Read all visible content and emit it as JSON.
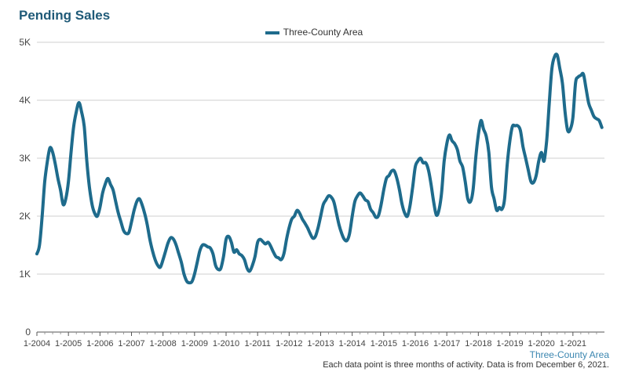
{
  "chart_data": {
    "type": "line",
    "title": "Pending Sales",
    "xlabel": "",
    "ylabel": "",
    "ylim": [
      0,
      5000
    ],
    "y_ticks": [
      "0",
      "1K",
      "2K",
      "3K",
      "4K",
      "5K"
    ],
    "x_ticks": [
      "1-2004",
      "1-2005",
      "1-2006",
      "1-2007",
      "1-2008",
      "1-2009",
      "1-2010",
      "1-2011",
      "1-2012",
      "1-2013",
      "1-2014",
      "1-2015",
      "1-2016",
      "1-2017",
      "1-2018",
      "1-2019",
      "1-2020",
      "1-2021"
    ],
    "grid": true,
    "legend_position": "top-center",
    "series": [
      {
        "name": "Three-County Area",
        "color": "#1e6b8c",
        "points": [
          [
            "2004-01",
            1350
          ],
          [
            "2004-02",
            1500
          ],
          [
            "2004-03",
            2000
          ],
          [
            "2004-04",
            2600
          ],
          [
            "2004-05",
            2950
          ],
          [
            "2004-06",
            3180
          ],
          [
            "2004-07",
            3100
          ],
          [
            "2004-08",
            2900
          ],
          [
            "2004-09",
            2650
          ],
          [
            "2004-10",
            2450
          ],
          [
            "2004-11",
            2200
          ],
          [
            "2004-12",
            2300
          ],
          [
            "2005-01",
            2600
          ],
          [
            "2005-02",
            3100
          ],
          [
            "2005-03",
            3550
          ],
          [
            "2005-04",
            3800
          ],
          [
            "2005-05",
            3960
          ],
          [
            "2005-06",
            3800
          ],
          [
            "2005-07",
            3550
          ],
          [
            "2005-08",
            2950
          ],
          [
            "2005-09",
            2500
          ],
          [
            "2005-10",
            2200
          ],
          [
            "2005-11",
            2050
          ],
          [
            "2005-12",
            2000
          ],
          [
            "2006-01",
            2150
          ],
          [
            "2006-02",
            2400
          ],
          [
            "2006-03",
            2550
          ],
          [
            "2006-04",
            2650
          ],
          [
            "2006-05",
            2550
          ],
          [
            "2006-06",
            2450
          ],
          [
            "2006-07",
            2250
          ],
          [
            "2006-08",
            2050
          ],
          [
            "2006-09",
            1900
          ],
          [
            "2006-10",
            1750
          ],
          [
            "2006-11",
            1700
          ],
          [
            "2006-12",
            1720
          ],
          [
            "2007-01",
            1900
          ],
          [
            "2007-02",
            2100
          ],
          [
            "2007-03",
            2250
          ],
          [
            "2007-04",
            2300
          ],
          [
            "2007-05",
            2200
          ],
          [
            "2007-06",
            2050
          ],
          [
            "2007-07",
            1850
          ],
          [
            "2007-08",
            1600
          ],
          [
            "2007-09",
            1400
          ],
          [
            "2007-10",
            1250
          ],
          [
            "2007-11",
            1150
          ],
          [
            "2007-12",
            1120
          ],
          [
            "2008-01",
            1250
          ],
          [
            "2008-02",
            1400
          ],
          [
            "2008-03",
            1550
          ],
          [
            "2008-04",
            1630
          ],
          [
            "2008-05",
            1600
          ],
          [
            "2008-06",
            1500
          ],
          [
            "2008-07",
            1350
          ],
          [
            "2008-08",
            1200
          ],
          [
            "2008-09",
            1000
          ],
          [
            "2008-10",
            880
          ],
          [
            "2008-11",
            850
          ],
          [
            "2008-12",
            870
          ],
          [
            "2009-01",
            1000
          ],
          [
            "2009-02",
            1200
          ],
          [
            "2009-03",
            1400
          ],
          [
            "2009-04",
            1500
          ],
          [
            "2009-05",
            1500
          ],
          [
            "2009-06",
            1470
          ],
          [
            "2009-07",
            1450
          ],
          [
            "2009-08",
            1350
          ],
          [
            "2009-09",
            1150
          ],
          [
            "2009-10",
            1080
          ],
          [
            "2009-11",
            1100
          ],
          [
            "2009-12",
            1300
          ],
          [
            "2010-01",
            1600
          ],
          [
            "2010-02",
            1650
          ],
          [
            "2010-03",
            1550
          ],
          [
            "2010-04",
            1380
          ],
          [
            "2010-05",
            1420
          ],
          [
            "2010-06",
            1350
          ],
          [
            "2010-07",
            1320
          ],
          [
            "2010-08",
            1250
          ],
          [
            "2010-09",
            1100
          ],
          [
            "2010-10",
            1050
          ],
          [
            "2010-11",
            1150
          ],
          [
            "2010-12",
            1300
          ],
          [
            "2011-01",
            1550
          ],
          [
            "2011-02",
            1600
          ],
          [
            "2011-03",
            1560
          ],
          [
            "2011-04",
            1520
          ],
          [
            "2011-05",
            1550
          ],
          [
            "2011-06",
            1480
          ],
          [
            "2011-07",
            1380
          ],
          [
            "2011-08",
            1300
          ],
          [
            "2011-09",
            1280
          ],
          [
            "2011-10",
            1250
          ],
          [
            "2011-11",
            1350
          ],
          [
            "2011-12",
            1600
          ],
          [
            "2012-01",
            1800
          ],
          [
            "2012-02",
            1950
          ],
          [
            "2012-03",
            2000
          ],
          [
            "2012-04",
            2100
          ],
          [
            "2012-05",
            2050
          ],
          [
            "2012-06",
            1950
          ],
          [
            "2012-07",
            1880
          ],
          [
            "2012-08",
            1800
          ],
          [
            "2012-09",
            1700
          ],
          [
            "2012-10",
            1620
          ],
          [
            "2012-11",
            1650
          ],
          [
            "2012-12",
            1800
          ],
          [
            "2013-01",
            2000
          ],
          [
            "2013-02",
            2200
          ],
          [
            "2013-03",
            2280
          ],
          [
            "2013-04",
            2350
          ],
          [
            "2013-05",
            2330
          ],
          [
            "2013-06",
            2250
          ],
          [
            "2013-07",
            2050
          ],
          [
            "2013-08",
            1850
          ],
          [
            "2013-09",
            1700
          ],
          [
            "2013-10",
            1600
          ],
          [
            "2013-11",
            1580
          ],
          [
            "2013-12",
            1700
          ],
          [
            "2014-01",
            2000
          ],
          [
            "2014-02",
            2250
          ],
          [
            "2014-03",
            2350
          ],
          [
            "2014-04",
            2400
          ],
          [
            "2014-05",
            2350
          ],
          [
            "2014-06",
            2280
          ],
          [
            "2014-07",
            2250
          ],
          [
            "2014-08",
            2120
          ],
          [
            "2014-09",
            2060
          ],
          [
            "2014-10",
            1980
          ],
          [
            "2014-11",
            2010
          ],
          [
            "2014-12",
            2200
          ],
          [
            "2015-01",
            2450
          ],
          [
            "2015-02",
            2650
          ],
          [
            "2015-03",
            2700
          ],
          [
            "2015-04",
            2780
          ],
          [
            "2015-05",
            2780
          ],
          [
            "2015-06",
            2650
          ],
          [
            "2015-07",
            2450
          ],
          [
            "2015-08",
            2200
          ],
          [
            "2015-09",
            2050
          ],
          [
            "2015-10",
            2000
          ],
          [
            "2015-11",
            2180
          ],
          [
            "2015-12",
            2500
          ],
          [
            "2016-01",
            2850
          ],
          [
            "2016-02",
            2950
          ],
          [
            "2016-03",
            3000
          ],
          [
            "2016-04",
            2920
          ],
          [
            "2016-05",
            2920
          ],
          [
            "2016-06",
            2800
          ],
          [
            "2016-07",
            2550
          ],
          [
            "2016-08",
            2250
          ],
          [
            "2016-09",
            2020
          ],
          [
            "2016-10",
            2100
          ],
          [
            "2016-11",
            2400
          ],
          [
            "2016-12",
            2950
          ],
          [
            "2017-01",
            3250
          ],
          [
            "2017-02",
            3400
          ],
          [
            "2017-03",
            3300
          ],
          [
            "2017-04",
            3250
          ],
          [
            "2017-05",
            3150
          ],
          [
            "2017-06",
            2950
          ],
          [
            "2017-07",
            2850
          ],
          [
            "2017-08",
            2600
          ],
          [
            "2017-09",
            2300
          ],
          [
            "2017-10",
            2250
          ],
          [
            "2017-11",
            2450
          ],
          [
            "2017-12",
            3000
          ],
          [
            "2018-01",
            3400
          ],
          [
            "2018-02",
            3650
          ],
          [
            "2018-03",
            3500
          ],
          [
            "2018-04",
            3380
          ],
          [
            "2018-05",
            3100
          ],
          [
            "2018-06",
            2500
          ],
          [
            "2018-07",
            2300
          ],
          [
            "2018-08",
            2100
          ],
          [
            "2018-09",
            2150
          ],
          [
            "2018-10",
            2120
          ],
          [
            "2018-11",
            2300
          ],
          [
            "2018-12",
            2900
          ],
          [
            "2019-01",
            3300
          ],
          [
            "2019-02",
            3550
          ],
          [
            "2019-03",
            3560
          ],
          [
            "2019-04",
            3560
          ],
          [
            "2019-05",
            3480
          ],
          [
            "2019-06",
            3200
          ],
          [
            "2019-07",
            3000
          ],
          [
            "2019-08",
            2800
          ],
          [
            "2019-09",
            2600
          ],
          [
            "2019-10",
            2580
          ],
          [
            "2019-11",
            2700
          ],
          [
            "2019-12",
            2950
          ],
          [
            "2020-01",
            3100
          ],
          [
            "2020-02",
            2950
          ],
          [
            "2020-03",
            3300
          ],
          [
            "2020-04",
            3950
          ],
          [
            "2020-05",
            4550
          ],
          [
            "2020-06",
            4750
          ],
          [
            "2020-07",
            4780
          ],
          [
            "2020-08",
            4550
          ],
          [
            "2020-09",
            4300
          ],
          [
            "2020-10",
            3800
          ],
          [
            "2020-11",
            3480
          ],
          [
            "2020-12",
            3500
          ],
          [
            "2021-01",
            3700
          ],
          [
            "2021-02",
            4300
          ],
          [
            "2021-03",
            4400
          ],
          [
            "2021-04",
            4430
          ],
          [
            "2021-05",
            4450
          ],
          [
            "2021-06",
            4200
          ],
          [
            "2021-07",
            3950
          ],
          [
            "2021-08",
            3830
          ],
          [
            "2021-09",
            3720
          ],
          [
            "2021-10",
            3680
          ],
          [
            "2021-11",
            3650
          ],
          [
            "2021-12",
            3530
          ]
        ]
      }
    ]
  },
  "area_label": "Three-County Area",
  "footnote": "Each data point is three months of activity. Data is from December 6, 2021."
}
